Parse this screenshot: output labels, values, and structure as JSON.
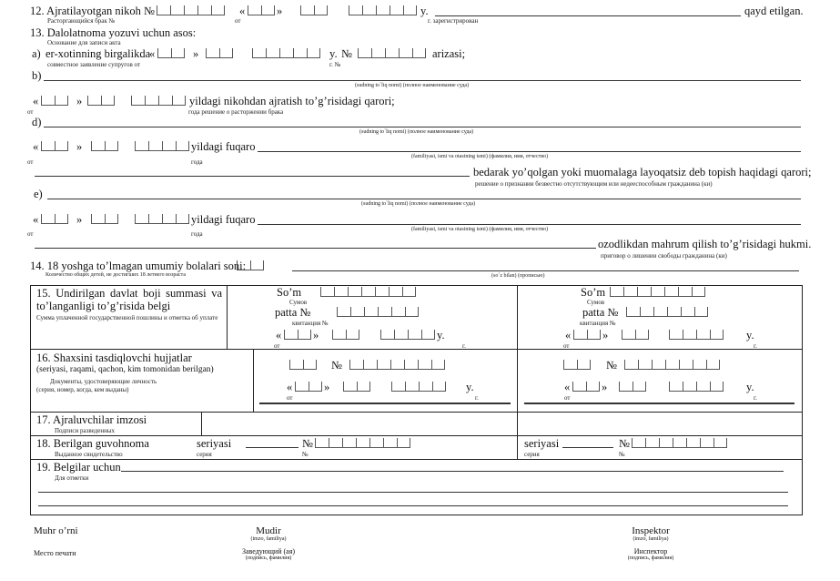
{
  "common": {
    "ot": "от",
    "goda": "года",
    "g": "г.",
    "y": "y.",
    "no": "№",
    "no_ru": "№",
    "lq": "«",
    "rq": "»"
  },
  "s12": {
    "label": "12. Ajratilayotgan nikoh №",
    "label_ru": "Расторгающийся брак №",
    "registered": "qayd etilgan.",
    "registered_ru": "г.  зарегистрирован"
  },
  "s13": {
    "label": "13. Dalolatnoma yozuvi uchun asos:",
    "label_ru": "Основание для записи акта",
    "a": {
      "marker": "a)",
      "text": "er-xotinning birgalikda",
      "suffix": "arizasi;",
      "text_ru": "совместное заявление супругов от",
      "suffix_ru": "г.   №"
    },
    "b": {
      "marker": "b)",
      "hint": "(sudning to`liq nomi) (полное наименование суда)",
      "decision": "yildagi nikohdan ajratish to’g’risidagi qarori;",
      "decision_ru": "года  решение о расторжении брака"
    },
    "d": {
      "marker": "d)",
      "hint": "(sudning to`liq nomi) (полное наименование суда)",
      "citizen": "yildagi fuqaro",
      "name_hint": "(familiyasi, ismi va otasining ismi) (фамилия, имя, отчество)",
      "decision": "bedarak yo’qolgan yoki muomalaga layoqatsiz deb topish haqidagi qarori;",
      "decision_ru": "решение о признании безвестно отсутствующим или недееспособным гражданина (ки)"
    },
    "e": {
      "marker": "e)",
      "hint": "(sudning to`liq nomi) (полное наименование суда)",
      "citizen": "yildagi fuqaro",
      "name_hint": "(familiyasi, ismi va otasining ismi) (фамилия, имя, отчество)",
      "decision": "ozodlikdan mahrum qilish to’g’risidagi hukmi.",
      "decision_ru": "приговор о лишении свободы гражданина (ки)"
    }
  },
  "s14": {
    "label": "14. 18 yoshga to’lmagan umumiy bolalari soni:",
    "label_ru": "Количество общих детей, не достигших 18 летнего возраста",
    "words_hint": "(so`z bilan) (прописью)"
  },
  "table": {
    "r15": {
      "label": "15. Undirilgan davlat boji summasi va to’langanligi to’g’risida belgi",
      "label_ru": "Сумма уплаченной государственной пошлины и отметка об уплате",
      "som": "So’m",
      "som_ru": "Сумов",
      "patta": "patta  №",
      "patta_ru": "квитанция №"
    },
    "r16": {
      "label": "16. Shaxsini tasdiqlovchi hujjatlar",
      "label2": "(seriyasi, raqami, qachon, kim tomonidan berilgan)",
      "label_ru": "Документы, удостоверяющие личность",
      "label_ru2": "(серия, номер, когда, кем выданы)"
    },
    "r17": {
      "label": "17. Ajraluvchilar imzosi",
      "label_ru": "Подписи разведенных"
    },
    "r18": {
      "label": "18. Berilgan guvohnoma",
      "label_ru": "Выданное свидетельство",
      "series": "seriyasi",
      "series_ru": "серия"
    },
    "r19": {
      "label": "19. Belgilar uchun",
      "label_ru": "Для отметки"
    }
  },
  "footer": {
    "seal": "Muhr o’rni",
    "seal_ru": "Место печати",
    "head": "Mudir",
    "head_hint": "(imzo, familiya)",
    "head_ru": "Заведующий (ая)",
    "head_ru_hint": "(подпись, фамилия)",
    "inspector": "Inspektor",
    "inspector_hint": "(imzo, familiya)",
    "inspector_ru": "Инспектор",
    "inspector_ru_hint": "(подпись, фамилия)"
  }
}
